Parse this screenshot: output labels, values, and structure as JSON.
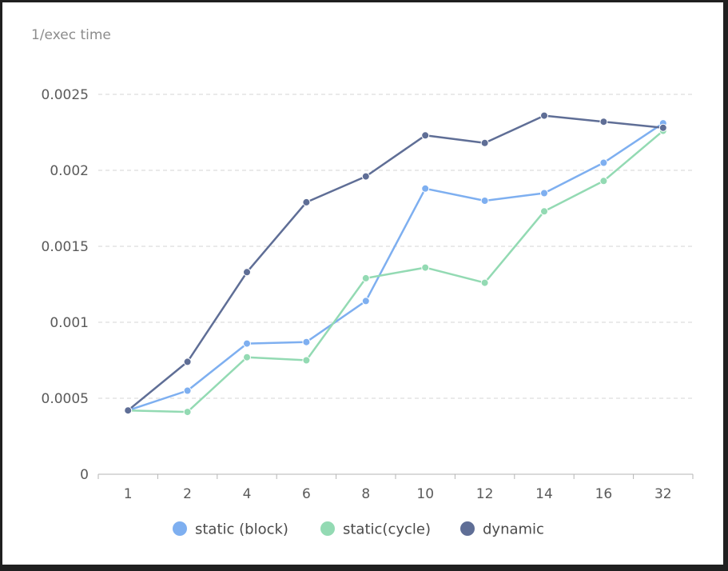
{
  "chart_data": {
    "type": "line",
    "title": "",
    "ylabel": "1/exec time",
    "xlabel": "",
    "categories": [
      "1",
      "2",
      "4",
      "6",
      "8",
      "10",
      "12",
      "14",
      "16",
      "32"
    ],
    "yticks": [
      "0",
      "0.0005",
      "0.001",
      "0.0015",
      "0.002",
      "0.0025"
    ],
    "ylim": [
      0,
      0.0025
    ],
    "grid": true,
    "legend_position": "bottom",
    "series": [
      {
        "name": "static (block)",
        "color": "#7eaff0",
        "values": [
          0.00042,
          0.00055,
          0.00086,
          0.00087,
          0.00114,
          0.00188,
          0.0018,
          0.00185,
          0.00205,
          0.00231
        ]
      },
      {
        "name": "static(cycle)",
        "color": "#93dab3",
        "values": [
          0.00042,
          0.00041,
          0.00077,
          0.00075,
          0.00129,
          0.00136,
          0.00126,
          0.00173,
          0.00193,
          0.00226
        ]
      },
      {
        "name": "dynamic",
        "color": "#5f6e96",
        "values": [
          0.00042,
          0.00074,
          0.00133,
          0.00179,
          0.00196,
          0.00223,
          0.00218,
          0.00236,
          0.00232,
          0.00228
        ]
      }
    ]
  }
}
